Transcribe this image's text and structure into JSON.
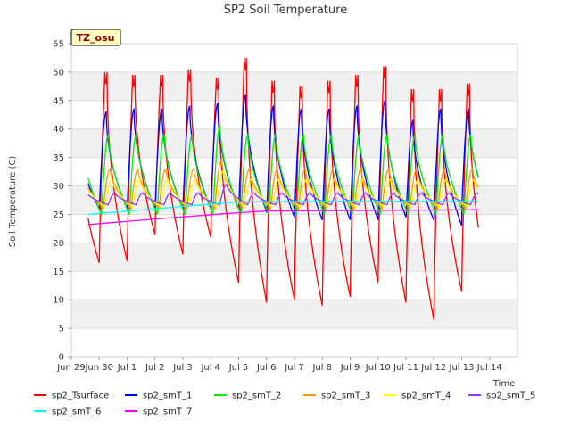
{
  "chart_data": {
    "type": "line",
    "title": "SP2 Soil Temperature",
    "xlabel": "Time",
    "ylabel": "Soil Temperature (C)",
    "badge": "TZ_osu",
    "ylim": [
      0,
      55
    ],
    "xlim": [
      0,
      16
    ],
    "yticks": [
      0,
      5,
      10,
      15,
      20,
      25,
      30,
      35,
      40,
      45,
      50,
      55
    ],
    "x_ticks": [
      {
        "x": 0,
        "label": "Jun 29"
      },
      {
        "x": 1,
        "label": "Jun 30"
      },
      {
        "x": 2,
        "label": "Jul 1"
      },
      {
        "x": 3,
        "label": "Jul 2"
      },
      {
        "x": 4,
        "label": "Jul 3"
      },
      {
        "x": 5,
        "label": "Jul 4"
      },
      {
        "x": 6,
        "label": "Jul 5"
      },
      {
        "x": 7,
        "label": "Jul 6"
      },
      {
        "x": 8,
        "label": "Jul 7"
      },
      {
        "x": 9,
        "label": "Jul 8"
      },
      {
        "x": 10,
        "label": "Jul 9"
      },
      {
        "x": 11,
        "label": "Jul 10"
      },
      {
        "x": 12,
        "label": "Jul 11"
      },
      {
        "x": 13,
        "label": "Jul 12"
      },
      {
        "x": 14,
        "label": "Jul 13"
      },
      {
        "x": 15,
        "label": "Jul 14"
      }
    ],
    "day_extremes": {
      "description": "approximate daily maxima / minima read from the plot, days starting Jun 29",
      "sp2_Tsurface_max": [
        null,
        50,
        49.5,
        49.5,
        50.5,
        49,
        52.5,
        48.5,
        47.5,
        48.5,
        49.5,
        51,
        47,
        47,
        48
      ],
      "sp2_Tsurface_min": [
        17,
        16.5,
        16.8,
        21.5,
        18,
        21,
        13,
        9.5,
        10,
        9,
        10.5,
        13,
        9.5,
        6.5,
        11.5
      ],
      "sp2_smT_1_max": [
        null,
        43,
        43.5,
        43.5,
        44,
        44.5,
        46,
        44,
        43.5,
        43.5,
        44,
        45,
        41.5,
        43.5,
        43.5
      ],
      "sp2_smT_1_min": [
        26,
        26,
        26,
        26,
        26,
        26,
        25.5,
        24.5,
        24,
        24,
        24,
        24.5,
        24,
        23,
        26
      ]
    },
    "series": [
      {
        "name": "sp2_Tsurface",
        "color": "#ff0000",
        "amp": 1.0,
        "base": 0,
        "lag": 0.0,
        "start": 0.6,
        "end": 14.6
      },
      {
        "name": "sp2_smT_1",
        "color": "#0000ff",
        "amp": 0.55,
        "base": 4,
        "lag": 0.03,
        "start": 0.6,
        "end": 14.6
      },
      {
        "name": "sp2_smT_2",
        "color": "#00ee00",
        "amp": 0.4,
        "base": 8,
        "lag": 0.08,
        "start": 0.6,
        "end": 14.6
      },
      {
        "name": "sp2_smT_3",
        "color": "#ff9900",
        "amp": 0.2,
        "base": 15.5,
        "lag": 0.14,
        "start": 0.6,
        "end": 14.6
      },
      {
        "name": "sp2_smT_4",
        "color": "#ffff00",
        "amp": 0.14,
        "base": 21,
        "lag": 0.2,
        "start": 0.6,
        "end": 14.6
      },
      {
        "name": "sp2_smT_5",
        "color": "#9933ff",
        "amp": 0.06,
        "base": 26.5,
        "lag": 0.32,
        "start": 0.6,
        "end": 14.6
      },
      {
        "name": "sp2_smT_6",
        "color": "#00ffff",
        "flat": [
          [
            0.6,
            25.0
          ],
          [
            3.0,
            26.0
          ],
          [
            6.0,
            27.2
          ],
          [
            9.0,
            27.3
          ],
          [
            14.6,
            27.3
          ]
        ]
      },
      {
        "name": "sp2_smT_7",
        "color": "#ff00ff",
        "flat": [
          [
            0.6,
            23.2
          ],
          [
            3.0,
            24.2
          ],
          [
            6.0,
            25.3
          ],
          [
            7.0,
            25.6
          ],
          [
            14.6,
            25.8
          ]
        ]
      }
    ],
    "legend_position": "bottom",
    "grid": true
  }
}
